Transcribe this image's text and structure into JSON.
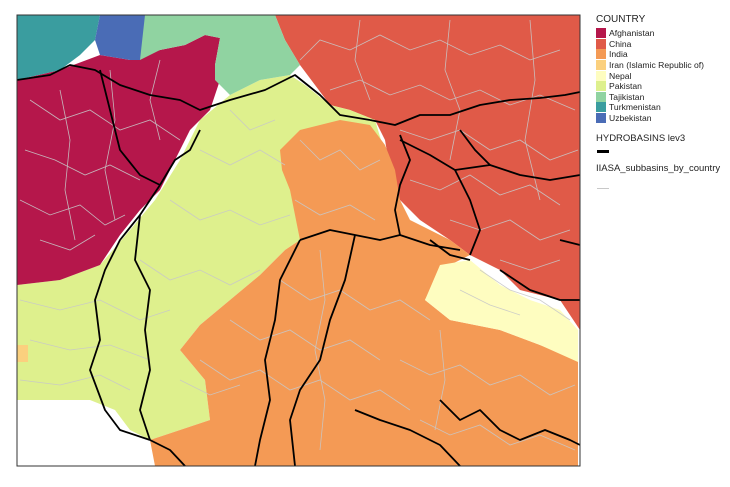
{
  "legend": {
    "country_title": "COUNTRY",
    "countries": [
      {
        "name": "Afghanistan",
        "color": "#b5174b"
      },
      {
        "name": "China",
        "color": "#e05a48"
      },
      {
        "name": "India",
        "color": "#f49a55"
      },
      {
        "name": "Iran (Islamic Republic of)",
        "color": "#fbd07e"
      },
      {
        "name": "Nepal",
        "color": "#fefdc0"
      },
      {
        "name": "Pakistan",
        "color": "#def08d"
      },
      {
        "name": "Tajikistan",
        "color": "#90d3a1"
      },
      {
        "name": "Turkmenistan",
        "color": "#3a9d9f"
      },
      {
        "name": "Uzbekistan",
        "color": "#4a6cb6"
      }
    ],
    "hydro_title": "HYDROBASINS lev3",
    "hydro_color": "#000000",
    "subbasin_title": "IIASA_subbasins_by_country",
    "subbasin_color": "#c8c8c8"
  }
}
